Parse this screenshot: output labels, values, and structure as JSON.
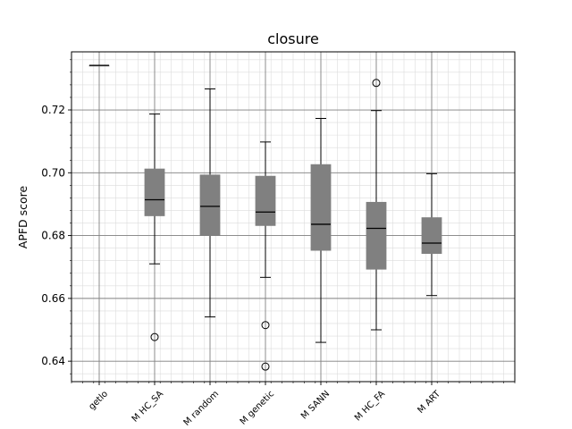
{
  "chart_data": {
    "type": "box",
    "title": "closure",
    "xlabel": "",
    "ylabel": "APFD score",
    "ylim": [
      0.6335,
      0.7385
    ],
    "yticks": [
      0.64,
      0.66,
      0.68,
      0.7,
      0.72
    ],
    "ytick_labels": [
      "0.64",
      "0.66",
      "0.68",
      "0.70",
      "0.72"
    ],
    "grid": true,
    "minor_grid": true,
    "box_color": "#808080",
    "median_color": "#000000",
    "categories": [
      "getlo",
      "M HC_SA",
      "M random",
      "M genetic",
      "M SANN",
      "M HC_FA",
      "M ART"
    ],
    "boxes": [
      {
        "label": "getlo",
        "whislo": 0.7342,
        "q1": 0.7342,
        "med": 0.7342,
        "q3": 0.7342,
        "whishi": 0.7342,
        "fliers": []
      },
      {
        "label": "M HC_SA",
        "whislo": 0.671,
        "q1": 0.6863,
        "med": 0.6914,
        "q3": 0.7012,
        "whishi": 0.7187,
        "fliers": [
          0.6477
        ]
      },
      {
        "label": "M random",
        "whislo": 0.6541,
        "q1": 0.68,
        "med": 0.6893,
        "q3": 0.6993,
        "whishi": 0.7267,
        "fliers": []
      },
      {
        "label": "M genetic",
        "whislo": 0.6667,
        "q1": 0.6832,
        "med": 0.6875,
        "q3": 0.6989,
        "whishi": 0.7098,
        "fliers": [
          0.6515,
          0.6383
        ]
      },
      {
        "label": "M SANN",
        "whislo": 0.646,
        "q1": 0.6753,
        "med": 0.6836,
        "q3": 0.7026,
        "whishi": 0.7173,
        "fliers": []
      },
      {
        "label": "M HC_FA",
        "whislo": 0.65,
        "q1": 0.6693,
        "med": 0.6823,
        "q3": 0.6906,
        "whishi": 0.7198,
        "fliers": [
          0.7286
        ]
      },
      {
        "label": "M ART",
        "whislo": 0.6609,
        "q1": 0.6743,
        "med": 0.6776,
        "q3": 0.6857,
        "whishi": 0.6997,
        "fliers": []
      }
    ]
  }
}
